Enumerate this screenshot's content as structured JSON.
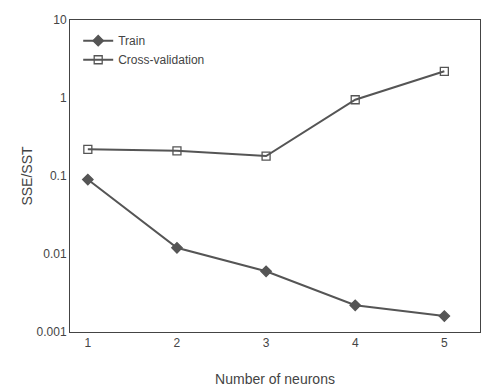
{
  "chart_data": {
    "type": "line",
    "x": [
      1,
      2,
      3,
      4,
      5
    ],
    "series": [
      {
        "name": "Train",
        "color": "#555555",
        "marker": "diamond",
        "line_style": "solid",
        "values": [
          0.09,
          0.012,
          0.006,
          0.0022,
          0.0016
        ]
      },
      {
        "name": "Cross-validation",
        "color": "#555555",
        "marker": "square-open",
        "line_style": "solid",
        "values": [
          0.22,
          0.21,
          0.18,
          0.95,
          2.2
        ]
      }
    ],
    "xlabel": "Number of neurons",
    "ylabel": "SSE/SST",
    "log": "y",
    "xlim": [
      0.8,
      5.4
    ],
    "xticks": [
      1,
      2,
      3,
      4,
      5
    ],
    "ylim": [
      0.001,
      10
    ],
    "yticks": [
      0.001,
      0.01,
      0.1,
      1,
      10
    ],
    "grid": false,
    "legend": "upper left"
  }
}
